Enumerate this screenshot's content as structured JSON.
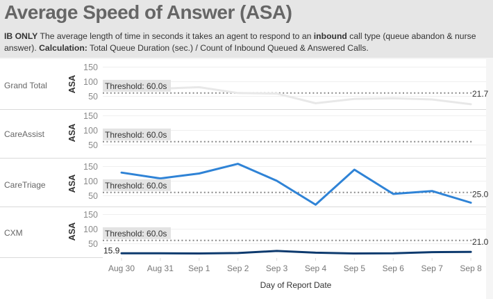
{
  "header": {
    "title": "Average Speed of Answer (ASA)",
    "desc_prefix_bold": "IB ONLY",
    "desc_part1": " The average length of time in seconds it takes an agent to respond to an ",
    "desc_inbound_bold": "inbound",
    "desc_part2": " call type (queue abandon & nurse answer). ",
    "desc_calc_bold": "Calculation:",
    "desc_part3": " Total Queue Duration (sec.) / Count of Inbound Queued & Answered Calls."
  },
  "axis": {
    "y_label": "ASA",
    "x_title": "Day of Report Date",
    "threshold_label": "Threshold: 60.0s"
  },
  "colors": {
    "grand_total": "#e8e8e8",
    "care_triage": "#2f83d6",
    "cxm": "#0d3a6e",
    "threshold": "#888888"
  },
  "chart_data": {
    "type": "line",
    "title": "Average Speed of Answer (ASA)",
    "xlabel": "Day of Report Date",
    "ylabel": "ASA",
    "categories": [
      "Aug 30",
      "Aug 31",
      "Sep 1",
      "Sep 2",
      "Sep 3",
      "Sep 4",
      "Sep 5",
      "Sep 6",
      "Sep 7",
      "Sep 8"
    ],
    "y_ticks": [
      50,
      100,
      150
    ],
    "threshold": 60.0,
    "series": [
      {
        "name": "Grand Total",
        "values": [
          78,
          75,
          80,
          60,
          58,
          25,
          40,
          42,
          38,
          21.7
        ],
        "end_label": "21.7"
      },
      {
        "name": "CareAssist",
        "values": [],
        "end_label": ""
      },
      {
        "name": "CareTriage",
        "values": [
          128,
          108,
          125,
          158,
          100,
          18,
          138,
          55,
          65,
          25.0
        ],
        "end_label": "25.0"
      },
      {
        "name": "CXM",
        "values": [
          15.9,
          16,
          15.5,
          17,
          24,
          18,
          15.5,
          16,
          20,
          21.0
        ],
        "start_label": "15.9",
        "end_label": "21.0"
      }
    ]
  }
}
